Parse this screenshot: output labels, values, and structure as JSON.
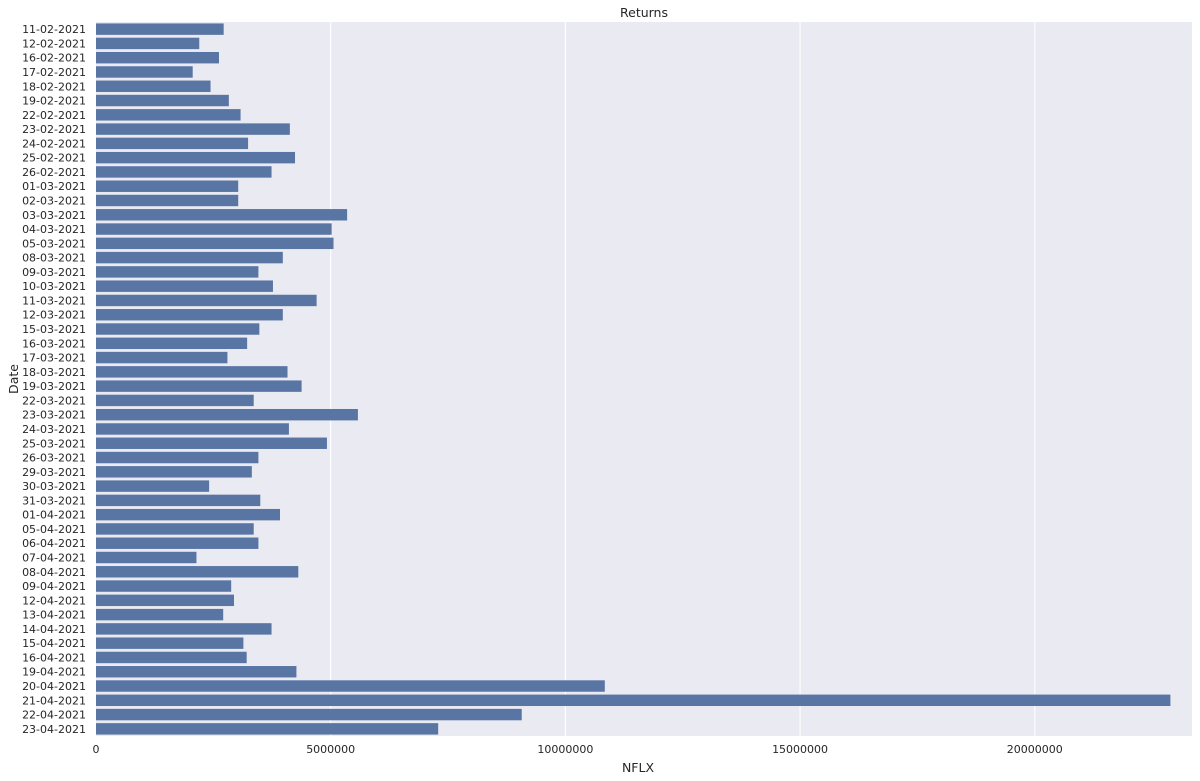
{
  "chart_data": {
    "type": "bar",
    "orientation": "horizontal",
    "title": "Returns",
    "xlabel": "NFLX",
    "ylabel": "Date",
    "xlim": [
      0,
      23350000
    ],
    "xticks": [
      0,
      5000000,
      10000000,
      15000000,
      20000000
    ],
    "xtick_labels": [
      "0",
      "5000000",
      "10000000",
      "15000000",
      "20000000"
    ],
    "grid": "x",
    "colors": {
      "bar": "#5875a4",
      "plot_background": "#eaeaf2",
      "grid": "#ffffff",
      "text": "#262626"
    },
    "categories": [
      "11-02-2021",
      "12-02-2021",
      "16-02-2021",
      "17-02-2021",
      "18-02-2021",
      "19-02-2021",
      "22-02-2021",
      "23-02-2021",
      "24-02-2021",
      "25-02-2021",
      "26-02-2021",
      "01-03-2021",
      "02-03-2021",
      "03-03-2021",
      "04-03-2021",
      "05-03-2021",
      "08-03-2021",
      "09-03-2021",
      "10-03-2021",
      "11-03-2021",
      "12-03-2021",
      "15-03-2021",
      "16-03-2021",
      "17-03-2021",
      "18-03-2021",
      "19-03-2021",
      "22-03-2021",
      "23-03-2021",
      "24-03-2021",
      "25-03-2021",
      "26-03-2021",
      "29-03-2021",
      "30-03-2021",
      "31-03-2021",
      "01-04-2021",
      "05-04-2021",
      "06-04-2021",
      "07-04-2021",
      "08-04-2021",
      "09-04-2021",
      "12-04-2021",
      "13-04-2021",
      "14-04-2021",
      "15-04-2021",
      "16-04-2021",
      "19-04-2021",
      "20-04-2021",
      "21-04-2021",
      "22-04-2021",
      "23-04-2021"
    ],
    "values": [
      2720000,
      2200000,
      2620000,
      2060000,
      2440000,
      2830000,
      3080000,
      4130000,
      3240000,
      4240000,
      3740000,
      3030000,
      3030000,
      5350000,
      5020000,
      5060000,
      3980000,
      3460000,
      3770000,
      4700000,
      3980000,
      3480000,
      3220000,
      2800000,
      4080000,
      4380000,
      3360000,
      5580000,
      4110000,
      4920000,
      3460000,
      3320000,
      2410000,
      3500000,
      3920000,
      3360000,
      3460000,
      2140000,
      4310000,
      2880000,
      2940000,
      2710000,
      3740000,
      3140000,
      3210000,
      4270000,
      10840000,
      22890000,
      9070000,
      7290000
    ]
  }
}
